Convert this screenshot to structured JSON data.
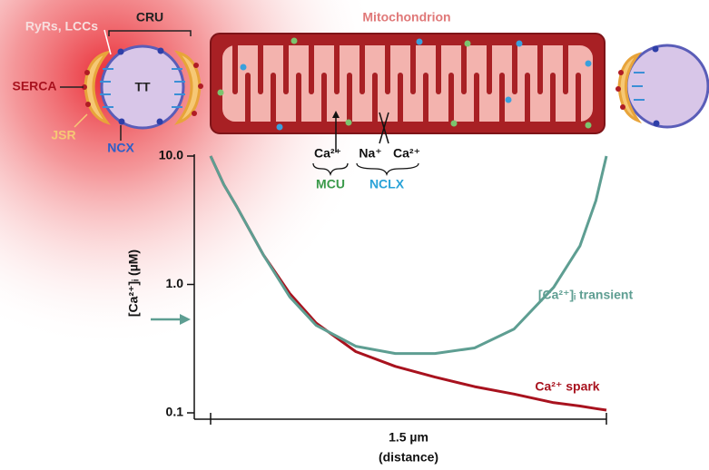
{
  "diagram": {
    "cru": "CRU",
    "ryrs": "RyRs, LCCs",
    "serca": "SERCA",
    "tt": "TT",
    "jsr": "JSR",
    "ncx": "NCX",
    "mito": "Mitochondrion",
    "ca_in": "Ca²⁺",
    "na": "Na⁺",
    "ca_out": "Ca²⁺",
    "mcu": "MCU",
    "nclx": "NCLX"
  },
  "chart_data": {
    "type": "line",
    "ylabel": "[Ca²⁺]ᵢ (µM)",
    "scale_bar": "1.5 µm",
    "xlabel": "(distance)",
    "log_y": true,
    "ylim": [
      0.1,
      10
    ],
    "xlim": [
      0,
      1.5
    ],
    "yticks": [
      {
        "value": 10,
        "label": "10.0"
      },
      {
        "value": 1,
        "label": "1.0"
      },
      0.1
    ],
    "x": [
      0,
      0.05,
      0.1,
      0.2,
      0.3,
      0.4,
      0.55,
      0.7,
      0.85,
      1.0,
      1.15,
      1.3,
      1.4,
      1.46,
      1.5
    ],
    "series": [
      {
        "name": "Ca²⁺ spark",
        "color": "#a8121e",
        "values": [
          10,
          6.0,
          4.0,
          1.7,
          0.85,
          0.5,
          0.3,
          0.23,
          0.19,
          0.16,
          0.14,
          0.12,
          0.113,
          0.108,
          0.105
        ]
      },
      {
        "name": "[Ca²⁺]ᵢ transient",
        "color": "#5e9e92",
        "values": [
          10,
          6.0,
          4.0,
          1.7,
          0.8,
          0.48,
          0.33,
          0.29,
          0.29,
          0.32,
          0.45,
          0.95,
          2.0,
          4.5,
          10
        ]
      }
    ]
  }
}
